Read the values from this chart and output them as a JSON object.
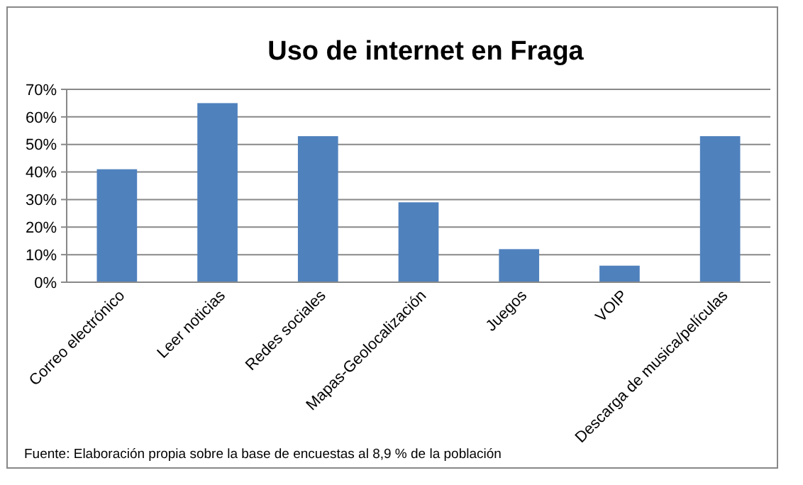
{
  "chart_data": {
    "type": "bar",
    "title": "Uso de internet en Fraga",
    "categories": [
      "Correo electrónico",
      "Leer noticias",
      "Redes sociales",
      "Mapas-Geolocalización",
      "Juegos",
      "VOIP",
      "Descarga de musica/películas"
    ],
    "values": [
      41,
      65,
      53,
      29,
      12,
      6,
      53
    ],
    "color": "#4f81bd",
    "ylim": [
      0,
      70
    ],
    "yticks": [
      {
        "value": 0,
        "label": "0%"
      },
      {
        "value": 10,
        "label": "10%"
      },
      {
        "value": 20,
        "label": "20%"
      },
      {
        "value": 30,
        "label": "30%"
      },
      {
        "value": 40,
        "label": "40%"
      },
      {
        "value": 50,
        "label": "50%"
      },
      {
        "value": 60,
        "label": "60%"
      },
      {
        "value": 70,
        "label": "70%"
      }
    ],
    "grid": "y",
    "annotations": [
      "Fuente: Elaboración propia sobre la base de encuestas al 8,9 % de la población"
    ]
  }
}
